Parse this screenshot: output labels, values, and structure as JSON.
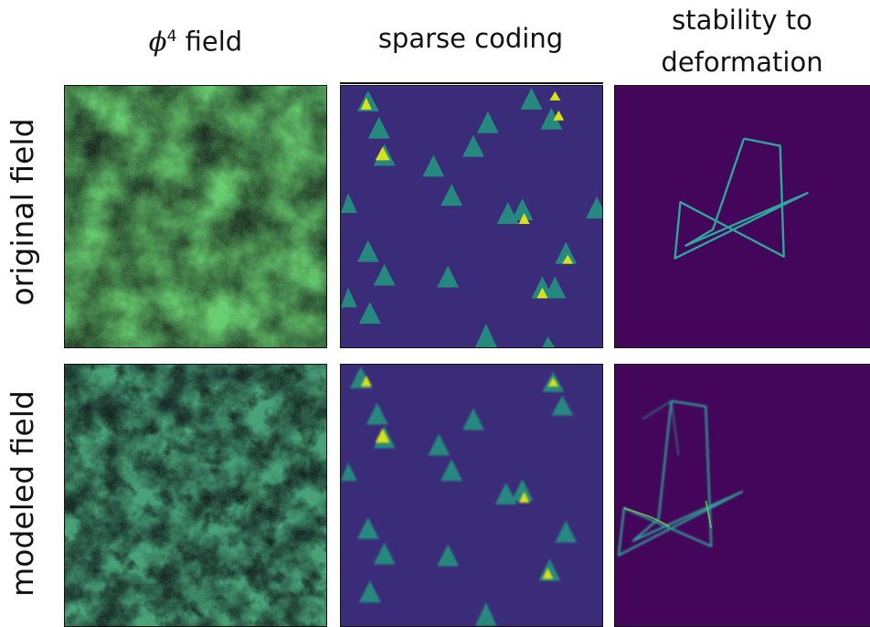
{
  "columns": [
    {
      "title_main": "ϕ",
      "title_sup": "4",
      "title_rest": " field"
    },
    {
      "title": "sparse coding"
    },
    {
      "title_line1": "stability to",
      "title_line2": "deformation"
    }
  ],
  "rows": [
    {
      "label": "original field"
    },
    {
      "label": "modeled field"
    }
  ],
  "colors": {
    "viridis_dark": "#440154",
    "viridis_bg": "#3b1f6e",
    "viridis_mid": "#21908c",
    "viridis_green": "#5ec962",
    "viridis_yellow": "#fde725",
    "teal": "#2a8f84"
  }
}
